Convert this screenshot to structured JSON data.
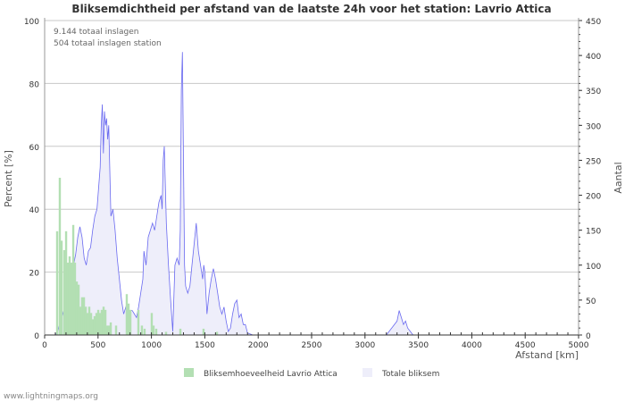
{
  "chart_data": {
    "type": "bar+area",
    "title": "Bliksemdichtheid per afstand van de laatste 24h voor het station: Lavrio Attica",
    "annotations": [
      "9.144 totaal inslagen",
      "504 totaal inslagen station"
    ],
    "xlabel": "Afstand   [km]",
    "ylabel_left": "Percent   [%]",
    "ylabel_right": "Aantal",
    "xlim": [
      0,
      5000
    ],
    "ylim_left": [
      0,
      100
    ],
    "ylim_right": [
      0,
      450
    ],
    "x_ticks": [
      "0",
      "500",
      "1000",
      "1500",
      "2000",
      "2500",
      "3000",
      "3500",
      "4000",
      "4500",
      "5000"
    ],
    "y_left_ticks": [
      "0",
      "20",
      "40",
      "60",
      "80",
      "100"
    ],
    "y_right_ticks": [
      "0",
      "50",
      "100",
      "150",
      "200",
      "250",
      "300",
      "350",
      "400",
      "450"
    ],
    "legend": [
      "Bliksemhoeveelheid Lavrio Attica",
      "Totale bliksem"
    ],
    "legend_position": "bottom",
    "colors": {
      "station": "#b3dfb3",
      "total_fill": "#eeeefa",
      "total_line": "#6a6af0"
    },
    "series": [
      {
        "name": "Bliksemhoeveelheid Lavrio Attica",
        "axis": "left",
        "x": [
          117,
          142,
          159,
          184,
          201,
          217,
          234,
          251,
          268,
          284,
          301,
          318,
          334,
          351,
          368,
          385,
          401,
          418,
          435,
          452,
          468,
          485,
          502,
          518,
          535,
          552,
          569,
          585,
          602,
          619,
          669,
          769,
          786,
          803,
          878,
          911,
          936,
          1003,
          1020,
          1045,
          1137,
          1271,
          1488,
          1614
        ],
        "values": [
          33,
          50,
          30,
          27,
          33,
          23,
          25,
          23,
          35,
          23,
          17,
          16,
          9,
          12,
          12,
          9,
          7,
          9,
          7,
          5,
          6,
          7,
          8,
          7,
          8,
          9,
          8,
          3,
          3,
          4,
          3,
          13,
          10,
          8,
          8,
          3,
          2,
          7,
          3,
          2,
          1,
          2,
          2,
          1
        ]
      },
      {
        "name": "Totale bliksem",
        "axis": "right",
        "x": [
          100,
          120,
          150,
          180,
          200,
          220,
          250,
          270,
          290,
          310,
          330,
          350,
          370,
          390,
          410,
          430,
          450,
          470,
          490,
          500,
          520,
          530,
          540,
          550,
          560,
          570,
          580,
          590,
          600,
          620,
          640,
          660,
          680,
          700,
          720,
          740,
          760,
          780,
          800,
          820,
          840,
          860,
          880,
          900,
          920,
          930,
          950,
          970,
          990,
          1010,
          1030,
          1050,
          1070,
          1090,
          1100,
          1110,
          1120,
          1140,
          1160,
          1180,
          1200,
          1220,
          1240,
          1260,
          1270,
          1280,
          1290,
          1300,
          1310,
          1320,
          1340,
          1360,
          1380,
          1400,
          1420,
          1440,
          1460,
          1480,
          1490,
          1500,
          1520,
          1540,
          1560,
          1580,
          1600,
          1620,
          1640,
          1660,
          1680,
          1700,
          1720,
          1740,
          1760,
          1780,
          1800,
          1820,
          1840,
          1860,
          1880,
          1900,
          1950,
          3200,
          3250,
          3300,
          3320,
          3340,
          3360,
          3380,
          3400,
          3450,
          5000
        ],
        "values": [
          0,
          5,
          20,
          35,
          50,
          60,
          75,
          100,
          115,
          140,
          155,
          140,
          110,
          100,
          120,
          125,
          150,
          170,
          180,
          200,
          240,
          300,
          330,
          260,
          320,
          300,
          310,
          280,
          300,
          170,
          180,
          150,
          110,
          80,
          50,
          30,
          40,
          30,
          35,
          35,
          30,
          25,
          40,
          60,
          80,
          120,
          100,
          140,
          150,
          160,
          150,
          170,
          190,
          200,
          180,
          250,
          270,
          160,
          100,
          50,
          5,
          100,
          110,
          100,
          150,
          350,
          405,
          250,
          100,
          70,
          60,
          70,
          100,
          130,
          160,
          120,
          100,
          80,
          100,
          90,
          30,
          60,
          80,
          95,
          80,
          60,
          40,
          30,
          40,
          20,
          5,
          10,
          30,
          45,
          50,
          25,
          30,
          15,
          15,
          3,
          0,
          0,
          10,
          20,
          35,
          25,
          15,
          20,
          10,
          0,
          0
        ]
      }
    ]
  },
  "footer": "www.lightningmaps.org"
}
